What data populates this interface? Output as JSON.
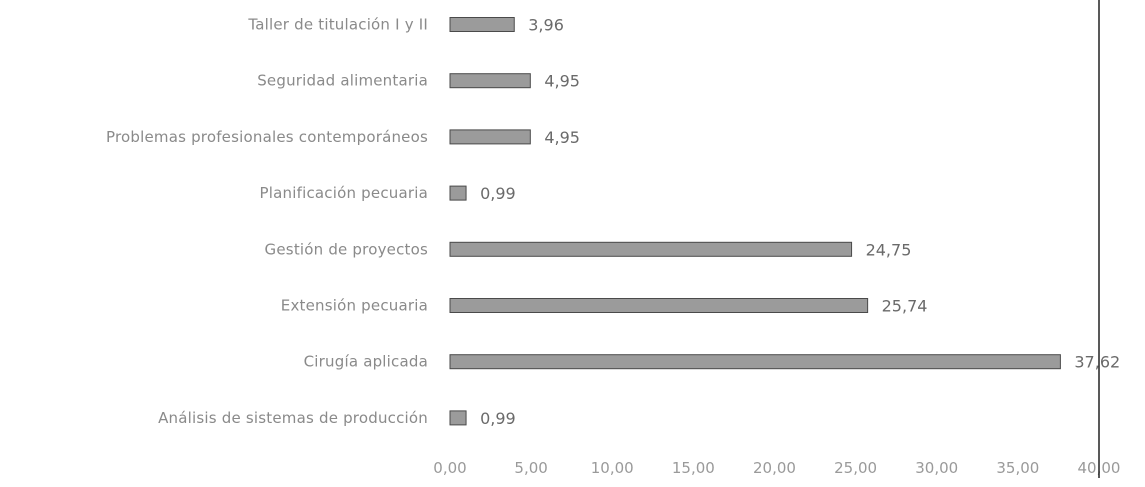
{
  "chart_data": {
    "type": "bar",
    "orientation": "horizontal",
    "categories": [
      "Taller de titulación I y II",
      "Seguridad alimentaria",
      "Problemas profesionales contemporáneos",
      "Planificación pecuaria",
      "Gestión de proyectos",
      "Extensión pecuaria",
      "Cirugía aplicada",
      "Análisis de sistemas de producción"
    ],
    "values": [
      3.96,
      4.95,
      4.95,
      0.99,
      24.75,
      25.74,
      37.62,
      0.99
    ],
    "value_labels": [
      "3,96",
      "4,95",
      "4,95",
      "0,99",
      "24,75",
      "25,74",
      "37,62",
      "0,99"
    ],
    "xlim": [
      0,
      40
    ],
    "xticks": [
      "0,00",
      "5,00",
      "10,00",
      "15,00",
      "20,00",
      "25,00",
      "30,00",
      "35,00",
      "40,00"
    ],
    "title": "",
    "xlabel": "",
    "ylabel": "",
    "grid": false,
    "legend": "none",
    "colors": {
      "bar": "#9b9b9b",
      "bar_edge": "#4a4a4a",
      "axis": "#222222"
    }
  }
}
